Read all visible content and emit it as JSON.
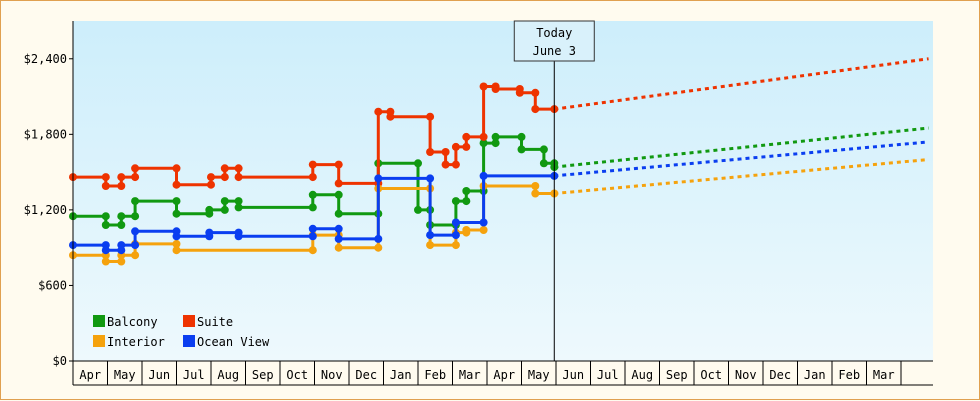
{
  "chart_data": {
    "type": "line",
    "y_ticks": [
      {
        "value": 0,
        "label": "$0"
      },
      {
        "value": 600,
        "label": "$600"
      },
      {
        "value": 1200,
        "label": "$1,200"
      },
      {
        "value": 1800,
        "label": "$1,800"
      },
      {
        "value": 2400,
        "label": "$2,400"
      }
    ],
    "ylim": [
      0,
      2700
    ],
    "x_months": [
      "Apr",
      "May",
      "Jun",
      "Jul",
      "Aug",
      "Sep",
      "Oct",
      "Nov",
      "Dec",
      "Jan",
      "Feb",
      "Mar",
      "Apr",
      "May",
      "Jun",
      "Jul",
      "Aug",
      "Sep",
      "Oct",
      "Nov",
      "Dec",
      "Jan",
      "Feb",
      "Mar"
    ],
    "today": {
      "index": 13.95,
      "line1": "Today",
      "line2": "June 3"
    },
    "legend_position": "bottom-left",
    "grid": false,
    "background_gradient": [
      "#cdeefb",
      "#eef9fd"
    ],
    "series": [
      {
        "name": "Balcony",
        "color": "#119911",
        "points": [
          [
            0,
            1150
          ],
          [
            0.95,
            1150
          ],
          [
            0.95,
            1080
          ],
          [
            1.4,
            1080
          ],
          [
            1.4,
            1150
          ],
          [
            1.8,
            1150
          ],
          [
            1.8,
            1270
          ],
          [
            3.0,
            1270
          ],
          [
            3.0,
            1170
          ],
          [
            3.95,
            1170
          ],
          [
            3.95,
            1200
          ],
          [
            4.4,
            1200
          ],
          [
            4.4,
            1270
          ],
          [
            4.8,
            1270
          ],
          [
            4.8,
            1220
          ],
          [
            6.95,
            1220
          ],
          [
            6.95,
            1320
          ],
          [
            7.7,
            1320
          ],
          [
            7.7,
            1170
          ],
          [
            8.85,
            1170
          ],
          [
            8.85,
            1570
          ],
          [
            10.0,
            1570
          ],
          [
            10.0,
            1200
          ],
          [
            10.35,
            1200
          ],
          [
            10.35,
            1080
          ],
          [
            11.1,
            1080
          ],
          [
            11.1,
            1270
          ],
          [
            11.4,
            1270
          ],
          [
            11.4,
            1350
          ],
          [
            11.9,
            1350
          ],
          [
            11.9,
            1730
          ],
          [
            12.25,
            1730
          ],
          [
            12.25,
            1780
          ],
          [
            13.0,
            1780
          ],
          [
            13.0,
            1680
          ],
          [
            13.65,
            1680
          ],
          [
            13.65,
            1570
          ],
          [
            13.95,
            1570
          ],
          [
            13.95,
            1540
          ]
        ]
      },
      {
        "name": "Suite",
        "color": "#ee3300",
        "points": [
          [
            0,
            1460
          ],
          [
            0.95,
            1460
          ],
          [
            0.95,
            1390
          ],
          [
            1.4,
            1390
          ],
          [
            1.4,
            1460
          ],
          [
            1.8,
            1460
          ],
          [
            1.8,
            1530
          ],
          [
            3.0,
            1530
          ],
          [
            3.0,
            1400
          ],
          [
            4.0,
            1400
          ],
          [
            4.0,
            1460
          ],
          [
            4.4,
            1460
          ],
          [
            4.4,
            1530
          ],
          [
            4.8,
            1530
          ],
          [
            4.8,
            1460
          ],
          [
            6.95,
            1460
          ],
          [
            6.95,
            1560
          ],
          [
            7.7,
            1560
          ],
          [
            7.7,
            1410
          ],
          [
            8.85,
            1410
          ],
          [
            8.85,
            1980
          ],
          [
            9.2,
            1980
          ],
          [
            9.2,
            1940
          ],
          [
            10.35,
            1940
          ],
          [
            10.35,
            1660
          ],
          [
            10.8,
            1660
          ],
          [
            10.8,
            1560
          ],
          [
            11.1,
            1560
          ],
          [
            11.1,
            1700
          ],
          [
            11.4,
            1700
          ],
          [
            11.4,
            1780
          ],
          [
            11.9,
            1780
          ],
          [
            11.9,
            2180
          ],
          [
            12.25,
            2180
          ],
          [
            12.25,
            2160
          ],
          [
            12.95,
            2160
          ],
          [
            12.95,
            2130
          ],
          [
            13.4,
            2130
          ],
          [
            13.4,
            2000
          ],
          [
            13.95,
            2000
          ]
        ]
      },
      {
        "name": "Interior",
        "color": "#f5a20d",
        "points": [
          [
            0,
            840
          ],
          [
            0.95,
            840
          ],
          [
            0.95,
            790
          ],
          [
            1.4,
            790
          ],
          [
            1.4,
            840
          ],
          [
            1.8,
            840
          ],
          [
            1.8,
            930
          ],
          [
            3.0,
            930
          ],
          [
            3.0,
            880
          ],
          [
            6.95,
            880
          ],
          [
            6.95,
            1000
          ],
          [
            7.7,
            1000
          ],
          [
            7.7,
            900
          ],
          [
            8.85,
            900
          ],
          [
            8.85,
            1370
          ],
          [
            10.35,
            1370
          ],
          [
            10.35,
            920
          ],
          [
            11.1,
            920
          ],
          [
            11.1,
            1020
          ],
          [
            11.4,
            1020
          ],
          [
            11.4,
            1040
          ],
          [
            11.9,
            1040
          ],
          [
            11.9,
            1390
          ],
          [
            13.4,
            1390
          ],
          [
            13.4,
            1330
          ],
          [
            13.95,
            1330
          ]
        ]
      },
      {
        "name": "Ocean View",
        "color": "#0a3ef0",
        "points": [
          [
            0,
            920
          ],
          [
            0.95,
            920
          ],
          [
            0.95,
            880
          ],
          [
            1.4,
            880
          ],
          [
            1.4,
            920
          ],
          [
            1.8,
            920
          ],
          [
            1.8,
            1030
          ],
          [
            3.0,
            1030
          ],
          [
            3.0,
            990
          ],
          [
            3.95,
            990
          ],
          [
            3.95,
            1020
          ],
          [
            4.8,
            1020
          ],
          [
            4.8,
            990
          ],
          [
            6.95,
            990
          ],
          [
            6.95,
            1050
          ],
          [
            7.7,
            1050
          ],
          [
            7.7,
            970
          ],
          [
            8.85,
            970
          ],
          [
            8.85,
            1450
          ],
          [
            10.35,
            1450
          ],
          [
            10.35,
            1000
          ],
          [
            11.1,
            1000
          ],
          [
            11.1,
            1100
          ],
          [
            11.9,
            1100
          ],
          [
            11.9,
            1470
          ],
          [
            13.95,
            1470
          ]
        ]
      }
    ],
    "projections": [
      {
        "name": "Suite",
        "color": "#ee3300",
        "from": [
          13.95,
          2000
        ],
        "to": [
          24.8,
          2400
        ]
      },
      {
        "name": "Balcony",
        "color": "#119911",
        "from": [
          13.95,
          1540
        ],
        "to": [
          24.8,
          1850
        ]
      },
      {
        "name": "Ocean View",
        "color": "#0a3ef0",
        "from": [
          13.95,
          1470
        ],
        "to": [
          24.8,
          1740
        ]
      },
      {
        "name": "Interior",
        "color": "#f5a20d",
        "from": [
          13.95,
          1330
        ],
        "to": [
          24.8,
          1600
        ]
      }
    ],
    "legend": [
      {
        "name": "Balcony",
        "color": "#119911"
      },
      {
        "name": "Suite",
        "color": "#ee3300"
      },
      {
        "name": "Interior",
        "color": "#f5a20d"
      },
      {
        "name": "Ocean View",
        "color": "#0a3ef0"
      }
    ]
  }
}
